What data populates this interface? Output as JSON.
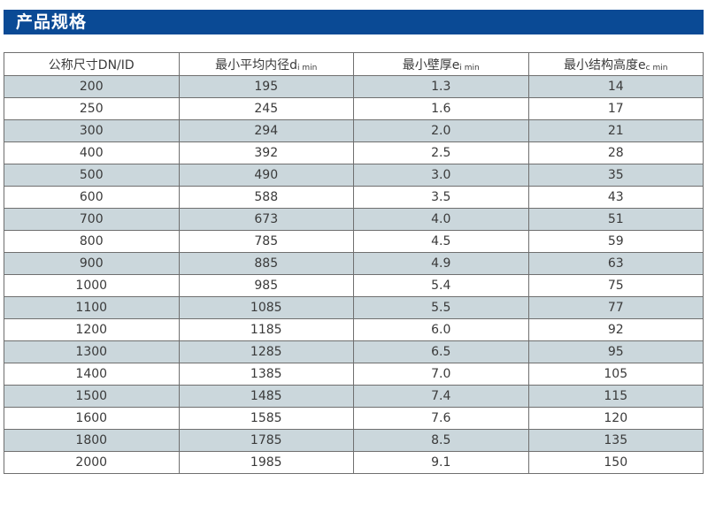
{
  "banner": {
    "title": "产品规格"
  },
  "colors": {
    "banner_bg": "#0a4a95",
    "banner_text": "#ffffff",
    "row_alt_bg": "#cbd7dc",
    "row_bg": "#ffffff",
    "border": "#6f6f6f",
    "text": "#3a3a3a"
  },
  "table": {
    "headers": [
      {
        "base": "公称尺寸DN/ID",
        "sub": ""
      },
      {
        "base": "最小平均内径d",
        "sub": "i min"
      },
      {
        "base": "最小壁厚e",
        "sub": "i min"
      },
      {
        "base": "最小结构高度e",
        "sub": "c min"
      }
    ],
    "rows": [
      [
        "200",
        "195",
        "1.3",
        "14"
      ],
      [
        "250",
        "245",
        "1.6",
        "17"
      ],
      [
        "300",
        "294",
        "2.0",
        "21"
      ],
      [
        "400",
        "392",
        "2.5",
        "28"
      ],
      [
        "500",
        "490",
        "3.0",
        "35"
      ],
      [
        "600",
        "588",
        "3.5",
        "43"
      ],
      [
        "700",
        "673",
        "4.0",
        "51"
      ],
      [
        "800",
        "785",
        "4.5",
        "59"
      ],
      [
        "900",
        "885",
        "4.9",
        "63"
      ],
      [
        "1000",
        "985",
        "5.4",
        "75"
      ],
      [
        "1100",
        "1085",
        "5.5",
        "77"
      ],
      [
        "1200",
        "1185",
        "6.0",
        "92"
      ],
      [
        "1300",
        "1285",
        "6.5",
        "95"
      ],
      [
        "1400",
        "1385",
        "7.0",
        "105"
      ],
      [
        "1500",
        "1485",
        "7.4",
        "115"
      ],
      [
        "1600",
        "1585",
        "7.6",
        "120"
      ],
      [
        "1800",
        "1785",
        "8.5",
        "135"
      ],
      [
        "2000",
        "1985",
        "9.1",
        "150"
      ]
    ]
  }
}
